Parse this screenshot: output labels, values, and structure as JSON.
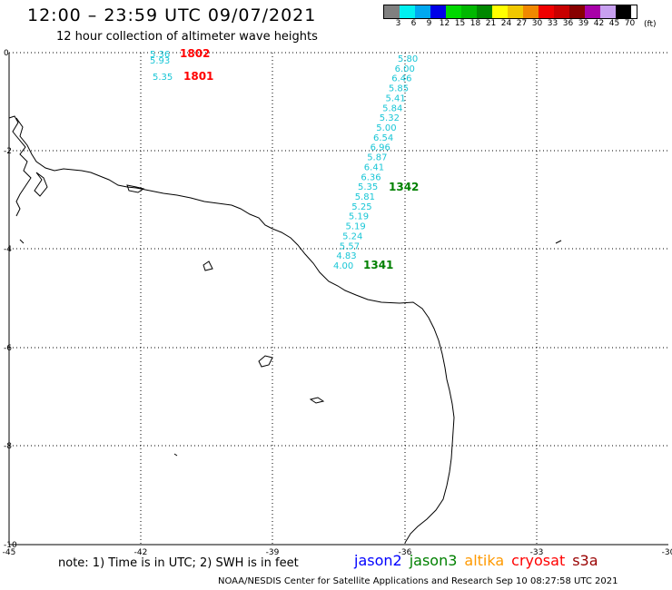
{
  "title": "12:00 – 23:59 UTC 09/07/2021",
  "subtitle": "12 hour collection of altimeter wave heights",
  "legend": {
    "colors": [
      "#808080",
      "#00f0f0",
      "#00a8f0",
      "#0000e8",
      "#00d800",
      "#00b800",
      "#008800",
      "#ffff00",
      "#f0c800",
      "#f08800",
      "#f00000",
      "#c80000",
      "#880000",
      "#a800a8",
      "#c8a0f0",
      "#000000"
    ],
    "labels": [
      "3",
      "6",
      "9",
      "12",
      "15",
      "18",
      "21",
      "24",
      "27",
      "30",
      "33",
      "36",
      "39",
      "42",
      "45",
      "70"
    ],
    "unit": "(ft)"
  },
  "axes": {
    "x_ticks": [
      "-45",
      "-42",
      "-39",
      "-36",
      "-33",
      "-30"
    ],
    "y_ticks": [
      "0",
      "-2",
      "-4",
      "-6",
      "-8",
      "-10"
    ]
  },
  "track_east": {
    "values": [
      "5.80",
      "6.00",
      "6.46",
      "5.85",
      "5.41",
      "5.84",
      "5.32",
      "5.00",
      "6.54",
      "6.96",
      "5.87",
      "6.41",
      "6.36",
      "5.35",
      "5.81",
      "5.25",
      "5.19",
      "5.19",
      "5.24",
      "5.57",
      "4.83",
      "4.00"
    ],
    "time_labels": [
      {
        "text": "1342",
        "color": "#008000"
      },
      {
        "text": "1341",
        "color": "#008000"
      }
    ]
  },
  "track_west": {
    "values": [
      "5.36",
      "5.93",
      "5.35"
    ],
    "time_labels": [
      {
        "text": "1802",
        "color": "#ff0000"
      },
      {
        "text": "1801",
        "color": "#ff0000"
      }
    ]
  },
  "note": "note:  1) Time is in UTC;  2) SWH is in feet",
  "satellites": [
    {
      "name": "jason2",
      "color": "#0000ff"
    },
    {
      "name": "jason3",
      "color": "#008000"
    },
    {
      "name": "altika",
      "color": "#ff9900"
    },
    {
      "name": "cryosat",
      "color": "#ff0000"
    },
    {
      "name": "s3a",
      "color": "#990000"
    }
  ],
  "credit": "NOAA/NESDIS Center for Satellite Applications and Research    Sep 10 08:27:58 UTC 2021"
}
